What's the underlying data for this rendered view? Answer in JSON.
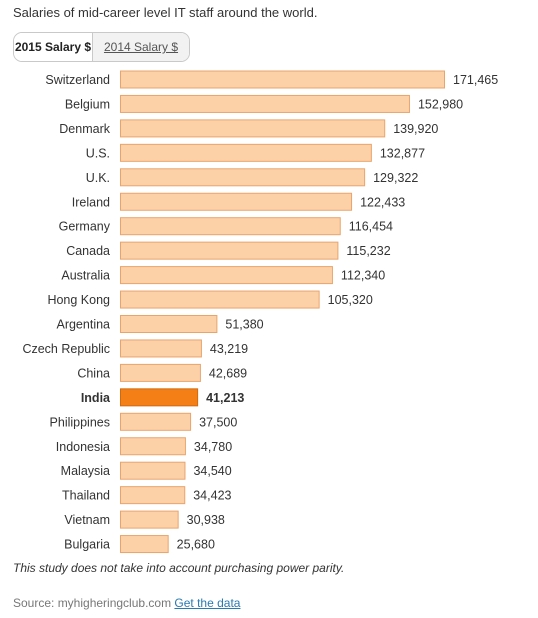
{
  "header": {
    "title": "Salaries of mid-career level IT staff around the world."
  },
  "tabs": [
    {
      "label": "2015 Salary $",
      "active": true
    },
    {
      "label": "2014 Salary $",
      "active": false
    }
  ],
  "chart_data": {
    "type": "bar",
    "orientation": "horizontal",
    "categories": [
      "Switzerland",
      "Belgium",
      "Denmark",
      "U.S.",
      "U.K.",
      "Ireland",
      "Germany",
      "Canada",
      "Australia",
      "Hong Kong",
      "Argentina",
      "Czech Republic",
      "China",
      "India",
      "Philippines",
      "Indonesia",
      "Malaysia",
      "Thailand",
      "Vietnam",
      "Bulgaria"
    ],
    "values": [
      171465,
      152980,
      139920,
      132877,
      129322,
      122433,
      116454,
      115232,
      112340,
      105320,
      51380,
      43219,
      42689,
      41213,
      37500,
      34780,
      34540,
      34423,
      30938,
      25680
    ],
    "value_labels": [
      "171,465",
      "152,980",
      "139,920",
      "132,877",
      "129,322",
      "122,433",
      "116,454",
      "115,232",
      "112,340",
      "105,320",
      "51,380",
      "43,219",
      "42,689",
      "41,213",
      "37,500",
      "34,780",
      "34,540",
      "34,423",
      "30,938",
      "25,680"
    ],
    "highlight": "India",
    "colors": {
      "bar": "#fdd1a7",
      "bar_border": "#e9a46b",
      "highlight_bar": "#f47f16",
      "highlight_border": "#d26a0c"
    },
    "xlim": [
      0,
      171465
    ],
    "grid": false,
    "legend": "none"
  },
  "footer": {
    "note": "This study does not take into account purchasing power parity.",
    "source_prefix": "Source: myhigheringclub.com",
    "link_label": "Get the data"
  }
}
